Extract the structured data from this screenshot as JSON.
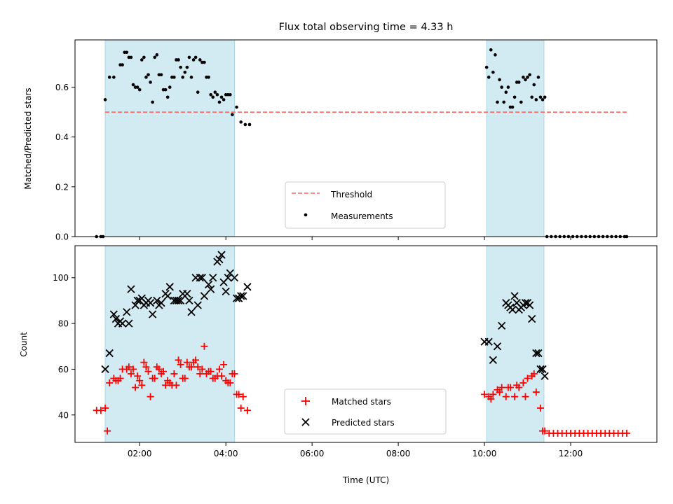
{
  "chart_data": [
    {
      "type": "scatter",
      "title": "Flux total observing time = 4.33 h",
      "xlabel": "",
      "ylabel": "Matched/Predicted stars",
      "x_unit": "hours (UTC)",
      "xlim": [
        0.5,
        14.0
      ],
      "ylim": [
        0.0,
        0.79
      ],
      "yticks": [
        0.0,
        0.2,
        0.4,
        0.6
      ],
      "ytick_labels": [
        "0.0",
        "0.2",
        "0.4",
        "0.6"
      ],
      "shaded_spans": [
        [
          1.2,
          4.2
        ],
        [
          10.05,
          11.38
        ]
      ],
      "shade_color": "#add8e6",
      "threshold": {
        "name": "Threshold",
        "value": 0.5,
        "xrange": [
          1.2,
          13.3
        ],
        "color": "#ff6666"
      },
      "series": [
        {
          "name": "Measurements",
          "color": "#000000",
          "x": [
            1.0,
            1.1,
            1.15,
            1.2,
            1.3,
            1.4,
            1.55,
            1.65,
            1.75,
            1.85,
            1.95,
            2.05,
            2.15,
            2.25,
            2.35,
            2.45,
            2.55,
            2.65,
            2.75,
            2.85,
            2.95,
            3.05,
            3.15,
            3.25,
            3.35,
            3.45,
            3.55,
            3.65,
            3.75,
            3.85,
            3.95,
            4.05,
            4.15,
            4.25,
            4.35,
            4.45,
            4.55,
            1.6,
            1.7,
            1.8,
            1.9,
            2.0,
            2.1,
            2.2,
            2.3,
            2.4,
            2.5,
            2.6,
            2.7,
            2.8,
            2.9,
            3.0,
            3.1,
            3.2,
            3.3,
            3.4,
            3.5,
            3.6,
            3.7,
            3.8,
            3.9,
            4.0,
            4.1,
            10.05,
            10.15,
            10.25,
            10.35,
            10.45,
            10.55,
            10.65,
            10.75,
            10.85,
            10.95,
            11.05,
            11.15,
            11.25,
            11.35,
            11.45,
            11.55,
            11.65,
            11.75,
            11.85,
            11.95,
            12.05,
            12.15,
            12.25,
            12.35,
            12.45,
            12.55,
            12.65,
            12.75,
            12.85,
            12.95,
            13.05,
            13.15,
            13.25,
            13.3,
            10.1,
            10.2,
            10.3,
            10.4,
            10.5,
            10.6,
            10.7,
            10.8,
            10.9,
            11.0,
            11.1,
            11.2,
            11.3,
            11.4
          ],
          "y": [
            0.0,
            0.0,
            0.0,
            0.55,
            0.64,
            0.64,
            0.69,
            0.74,
            0.72,
            0.61,
            0.6,
            0.71,
            0.64,
            0.62,
            0.72,
            0.65,
            0.59,
            0.56,
            0.64,
            0.71,
            0.68,
            0.66,
            0.72,
            0.71,
            0.58,
            0.7,
            0.64,
            0.57,
            0.58,
            0.54,
            0.55,
            0.57,
            0.49,
            0.52,
            0.46,
            0.45,
            0.45,
            0.69,
            0.74,
            0.72,
            0.6,
            0.59,
            0.72,
            0.65,
            0.54,
            0.73,
            0.65,
            0.59,
            0.6,
            0.64,
            0.71,
            0.64,
            0.68,
            0.64,
            0.72,
            0.71,
            0.7,
            0.64,
            0.56,
            0.57,
            0.56,
            0.57,
            0.57,
            0.68,
            0.75,
            0.73,
            0.63,
            0.54,
            0.6,
            0.52,
            0.62,
            0.54,
            0.63,
            0.65,
            0.61,
            0.64,
            0.55,
            0.0,
            0.0,
            0.0,
            0.0,
            0.0,
            0.0,
            0.0,
            0.0,
            0.0,
            0.0,
            0.0,
            0.0,
            0.0,
            0.0,
            0.0,
            0.0,
            0.0,
            0.0,
            0.0,
            0.0,
            0.64,
            0.66,
            0.54,
            0.6,
            0.58,
            0.52,
            0.56,
            0.62,
            0.64,
            0.64,
            0.56,
            0.55,
            0.56,
            0.56
          ]
        }
      ],
      "legend": {
        "placement": "lower-center",
        "entries": [
          "Threshold",
          "Measurements"
        ]
      },
      "grid": false
    },
    {
      "type": "scatter",
      "title": "",
      "xlabel": "Time (UTC)",
      "ylabel": "Count",
      "x_unit": "hours (UTC)",
      "xlim": [
        0.5,
        14.0
      ],
      "ylim": [
        28,
        114
      ],
      "xticks": [
        2,
        4,
        6,
        8,
        10,
        12
      ],
      "xtick_labels": [
        "02:00",
        "04:00",
        "06:00",
        "08:00",
        "10:00",
        "12:00"
      ],
      "yticks": [
        40,
        60,
        80,
        100
      ],
      "ytick_labels": [
        "40",
        "60",
        "80",
        "100"
      ],
      "shaded_spans": [
        [
          1.2,
          4.2
        ],
        [
          10.05,
          11.38
        ]
      ],
      "shade_color": "#add8e6",
      "series": [
        {
          "name": "Matched stars",
          "marker": "plus",
          "color": "#ff0000",
          "x": [
            1.0,
            1.1,
            1.2,
            1.3,
            1.4,
            1.5,
            1.6,
            1.7,
            1.8,
            1.9,
            2.0,
            2.1,
            2.2,
            2.3,
            2.4,
            2.5,
            2.6,
            2.7,
            2.8,
            2.9,
            3.0,
            3.1,
            3.2,
            3.3,
            3.4,
            3.5,
            3.6,
            3.7,
            3.8,
            3.9,
            4.0,
            4.1,
            4.2,
            4.3,
            4.4,
            4.5,
            1.25,
            1.45,
            1.55,
            1.75,
            1.85,
            1.95,
            2.05,
            2.15,
            2.25,
            2.35,
            2.45,
            2.55,
            2.65,
            2.75,
            2.85,
            2.95,
            3.05,
            3.15,
            3.25,
            3.35,
            3.45,
            3.55,
            3.65,
            3.75,
            3.85,
            3.95,
            4.05,
            4.15,
            4.25,
            4.35,
            10.0,
            10.1,
            10.2,
            10.3,
            10.4,
            10.5,
            10.6,
            10.7,
            10.8,
            10.9,
            11.0,
            11.1,
            11.2,
            11.3,
            11.4,
            11.5,
            11.6,
            11.7,
            11.8,
            11.9,
            12.0,
            12.1,
            12.2,
            12.3,
            12.4,
            12.5,
            12.6,
            12.7,
            12.8,
            12.9,
            13.0,
            13.1,
            13.2,
            13.3,
            10.15,
            10.35,
            10.55,
            10.75,
            10.95,
            11.15,
            11.35
          ],
          "y": [
            42,
            42,
            43,
            54,
            56,
            55,
            60,
            60,
            58,
            52,
            55,
            63,
            59,
            56,
            61,
            58,
            53,
            54,
            58,
            64,
            56,
            63,
            61,
            64,
            58,
            70,
            59,
            56,
            57,
            57,
            55,
            54,
            58,
            49,
            48,
            42,
            33,
            55,
            56,
            61,
            60,
            57,
            53,
            61,
            48,
            56,
            60,
            59,
            55,
            53,
            53,
            62,
            56,
            61,
            63,
            61,
            60,
            58,
            59,
            56,
            60,
            62,
            54,
            58,
            49,
            43,
            49,
            48,
            49,
            51,
            52,
            48,
            52,
            48,
            52,
            54,
            56,
            57,
            50,
            43,
            33,
            32,
            32,
            32,
            32,
            32,
            32,
            32,
            32,
            32,
            32,
            32,
            32,
            32,
            32,
            32,
            32,
            32,
            32,
            32,
            47,
            50,
            52,
            53,
            48,
            58,
            33
          ]
        },
        {
          "name": "Predicted stars",
          "marker": "x",
          "color": "#000000",
          "x": [
            1.2,
            1.3,
            1.4,
            1.5,
            1.6,
            1.7,
            1.8,
            1.9,
            2.0,
            2.1,
            2.2,
            2.3,
            2.4,
            2.5,
            2.6,
            2.7,
            2.8,
            2.9,
            3.0,
            3.1,
            3.2,
            3.3,
            3.4,
            3.5,
            3.6,
            3.7,
            3.8,
            3.9,
            4.0,
            4.1,
            4.2,
            4.3,
            4.4,
            4.5,
            1.45,
            1.55,
            1.75,
            1.95,
            2.05,
            2.15,
            2.25,
            2.45,
            2.65,
            2.85,
            2.95,
            3.15,
            3.35,
            3.45,
            3.65,
            3.85,
            3.95,
            4.05,
            4.25,
            4.35,
            10.0,
            10.1,
            10.2,
            10.3,
            10.4,
            10.5,
            10.6,
            10.7,
            10.8,
            10.9,
            11.0,
            11.1,
            11.2,
            11.3,
            11.4,
            10.55,
            10.65,
            10.75,
            10.85,
            10.95,
            11.05,
            11.25,
            11.35
          ],
          "y": [
            60,
            67,
            84,
            80,
            80,
            85,
            95,
            88,
            90,
            88,
            90,
            84,
            90,
            89,
            93,
            96,
            90,
            90,
            93,
            93,
            85,
            100,
            100,
            92,
            97,
            100,
            107,
            110,
            94,
            102,
            100,
            91,
            92,
            96,
            82,
            81,
            80,
            90,
            91,
            89,
            89,
            88,
            92,
            90,
            90,
            90,
            88,
            100,
            95,
            108,
            98,
            100,
            91,
            92,
            72,
            72,
            64,
            70,
            79,
            89,
            87,
            92,
            86,
            88,
            89,
            82,
            67,
            60,
            57,
            88,
            86,
            89,
            87,
            89,
            88,
            67,
            60
          ]
        }
      ],
      "legend": {
        "placement": "lower-center",
        "entries": [
          "Matched stars",
          "Predicted stars"
        ]
      },
      "grid": false
    }
  ]
}
